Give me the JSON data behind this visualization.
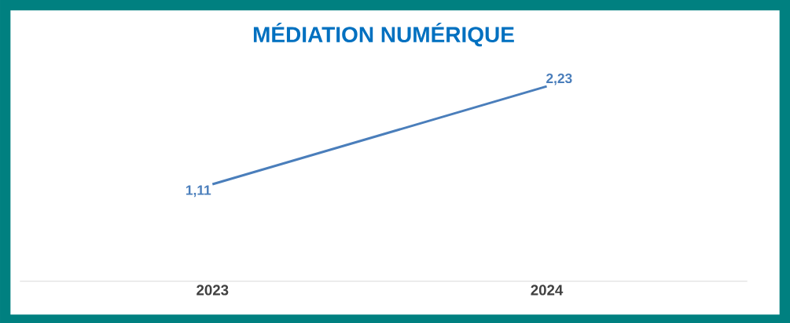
{
  "chart_data": {
    "type": "line",
    "title": "MÉDIATION NUMÉRIQUE",
    "categories": [
      "2023",
      "2024"
    ],
    "series": [
      {
        "color": "#4a7ebb",
        "values": [
          1.11,
          2.23
        ],
        "value_labels": [
          "1,11",
          "2,23"
        ]
      }
    ],
    "marker": "none",
    "line_style": "solid",
    "grid": false,
    "tick_labels": "x"
  }
}
